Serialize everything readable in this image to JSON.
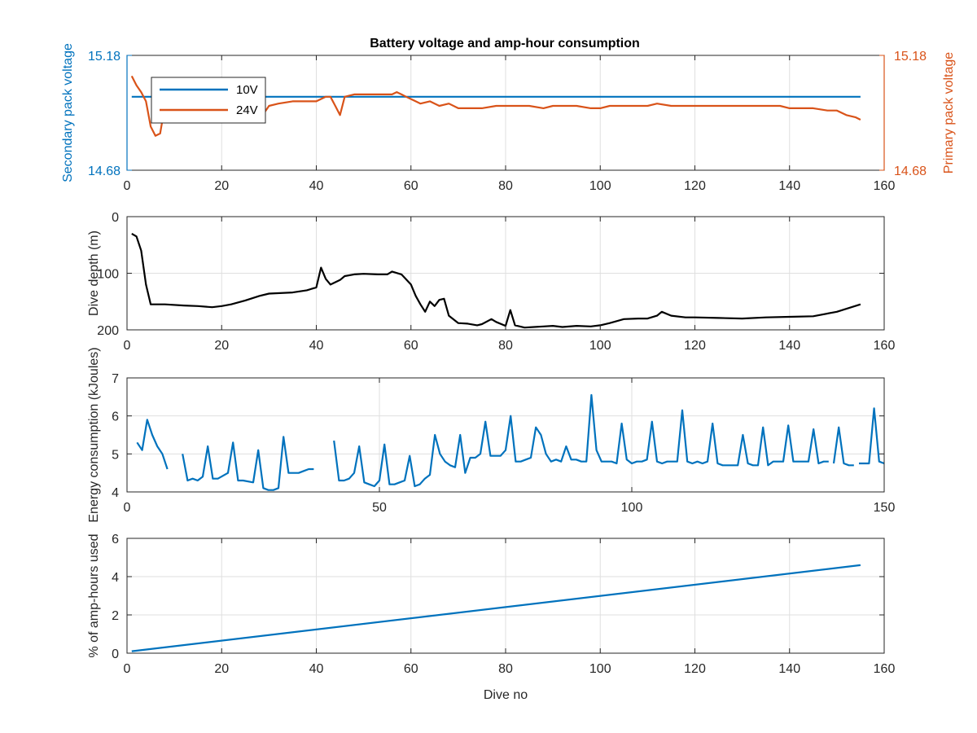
{
  "colors": {
    "blue": "#0072BD",
    "orange": "#D95319",
    "black": "#000000",
    "axis": "#262626",
    "grid": "#DFDFDF"
  },
  "chart_data": [
    {
      "type": "line",
      "title": "Battery voltage and amp-hour consumption",
      "xlabel": "",
      "ylabel_left": "Secondary pack voltage",
      "ylabel_right": "Primary pack voltage",
      "xlim": [
        0,
        160
      ],
      "ylim": [
        14.68,
        15.18
      ],
      "xticks": [
        0,
        20,
        40,
        60,
        80,
        100,
        120,
        140,
        160
      ],
      "yticks_left": [
        "14.68",
        "15.18"
      ],
      "yticks_right": [
        "14.68",
        "15.18"
      ],
      "grid": true,
      "legend": {
        "placement": "top-left",
        "entries": [
          "10V",
          "24V"
        ]
      },
      "series": [
        {
          "name": "10V",
          "axis": "left",
          "x": [
            1,
            155
          ],
          "y": [
            15.0,
            15.0
          ]
        },
        {
          "name": "24V",
          "axis": "right",
          "x": [
            1,
            2,
            3,
            4,
            5,
            6,
            7,
            8,
            10,
            12,
            15,
            18,
            20,
            22,
            25,
            27,
            28,
            29,
            30,
            32,
            35,
            38,
            40,
            42,
            43,
            44,
            45,
            46,
            48,
            50,
            52,
            54,
            56,
            57,
            58,
            59,
            60,
            62,
            64,
            66,
            68,
            70,
            72,
            75,
            78,
            80,
            82,
            85,
            88,
            90,
            92,
            95,
            98,
            100,
            102,
            105,
            108,
            110,
            112,
            115,
            118,
            120,
            122,
            125,
            128,
            130,
            132,
            135,
            138,
            140,
            142,
            145,
            148,
            150,
            152,
            154,
            155
          ],
          "y": [
            15.09,
            15.05,
            15.02,
            14.98,
            14.87,
            14.83,
            14.84,
            14.96,
            14.96,
            14.97,
            14.97,
            14.96,
            14.97,
            14.97,
            14.98,
            14.98,
            14.93,
            14.93,
            14.96,
            14.97,
            14.98,
            14.98,
            14.98,
            15.0,
            15.0,
            14.96,
            14.92,
            15.0,
            15.01,
            15.01,
            15.01,
            15.01,
            15.01,
            15.02,
            15.01,
            15.0,
            14.99,
            14.97,
            14.98,
            14.96,
            14.97,
            14.95,
            14.95,
            14.95,
            14.96,
            14.96,
            14.96,
            14.96,
            14.95,
            14.96,
            14.96,
            14.96,
            14.95,
            14.95,
            14.96,
            14.96,
            14.96,
            14.96,
            14.97,
            14.96,
            14.96,
            14.96,
            14.96,
            14.96,
            14.96,
            14.96,
            14.96,
            14.96,
            14.96,
            14.95,
            14.95,
            14.95,
            14.94,
            14.94,
            14.92,
            14.91,
            14.9
          ]
        }
      ]
    },
    {
      "type": "line",
      "title": "",
      "xlabel": "",
      "ylabel": "Dive depth (m)",
      "xlim": [
        0,
        160
      ],
      "ylim": [
        200,
        0
      ],
      "y_reversed": true,
      "xticks": [
        0,
        20,
        40,
        60,
        80,
        100,
        120,
        140,
        160
      ],
      "yticks": [
        0,
        100,
        200
      ],
      "grid": true,
      "series": [
        {
          "x": [
            1,
            2,
            3,
            4,
            5,
            8,
            12,
            15,
            18,
            20,
            22,
            25,
            28,
            30,
            35,
            38,
            40,
            41,
            42,
            43,
            45,
            46,
            48,
            50,
            53,
            55,
            56,
            58,
            60,
            61,
            62,
            63,
            64,
            65,
            66,
            67,
            68,
            70,
            72,
            74,
            75,
            77,
            78,
            80,
            81,
            82,
            84,
            86,
            88,
            90,
            92,
            95,
            98,
            100,
            102,
            105,
            108,
            110,
            112,
            113,
            115,
            118,
            120,
            125,
            130,
            135,
            140,
            145,
            150,
            155
          ],
          "y": [
            30,
            35,
            60,
            120,
            155,
            155,
            157,
            158,
            160,
            158,
            155,
            148,
            140,
            136,
            134,
            130,
            125,
            90,
            110,
            120,
            112,
            105,
            102,
            101,
            102,
            102,
            97,
            102,
            120,
            140,
            155,
            168,
            150,
            158,
            147,
            145,
            175,
            188,
            189,
            192,
            190,
            181,
            186,
            193,
            165,
            192,
            196,
            195,
            194,
            193,
            195,
            193,
            194,
            192,
            188,
            181,
            180,
            180,
            175,
            168,
            175,
            178,
            178,
            179,
            180,
            178,
            177,
            176,
            168,
            155
          ]
        }
      ]
    },
    {
      "type": "line",
      "title": "",
      "xlabel": "",
      "ylabel": "Energy consumption (kJoules)",
      "xlim": [
        0,
        150
      ],
      "ylim": [
        4,
        7
      ],
      "xticks": [
        0,
        50,
        100,
        150
      ],
      "yticks": [
        4,
        5,
        6,
        7
      ],
      "grid": true,
      "series": [
        {
          "segments": [
            {
              "x": [
                2,
                3,
                4,
                5,
                6,
                7,
                8
              ],
              "y": [
                5.3,
                5.1,
                5.9,
                5.5,
                5.2,
                5.0,
                4.6
              ]
            },
            {
              "x": [
                11,
                12,
                13,
                14,
                15,
                16,
                17,
                18,
                20,
                21,
                22,
                23,
                25,
                26,
                27,
                28,
                29,
                30,
                31,
                32,
                33,
                34,
                35,
                36,
                37
              ],
              "y": [
                5.0,
                4.3,
                4.35,
                4.3,
                4.4,
                5.2,
                4.35,
                4.35,
                4.5,
                5.3,
                4.3,
                4.3,
                4.25,
                5.1,
                4.1,
                4.05,
                4.05,
                4.1,
                5.45,
                4.5,
                4.5,
                4.5,
                4.55,
                4.6,
                4.6
              ]
            },
            {
              "x": [
                41,
                42,
                43,
                44,
                45,
                46,
                47,
                48,
                49,
                50,
                51,
                52,
                53,
                54,
                55,
                56,
                57,
                58,
                59,
                60,
                61,
                62,
                63,
                64,
                65,
                66,
                67,
                68,
                69,
                70,
                71,
                72,
                73,
                74,
                75,
                76,
                77,
                78,
                79,
                80,
                81,
                82,
                83,
                84,
                85,
                86,
                87,
                88,
                89,
                90,
                91,
                92,
                93,
                94,
                95,
                96,
                97,
                98,
                99,
                100,
                101,
                102,
                103,
                104,
                105,
                106,
                107,
                108,
                109,
                110,
                111,
                112,
                113,
                114,
                115,
                116,
                117,
                118,
                119,
                120,
                121,
                122,
                123,
                124,
                125,
                126,
                127,
                128,
                129,
                130,
                131,
                132,
                133,
                134,
                135,
                136,
                137,
                138,
                139
              ],
              "y": [
                5.35,
                4.3,
                4.3,
                4.35,
                4.5,
                5.2,
                4.25,
                4.2,
                4.15,
                4.3,
                5.25,
                4.2,
                4.2,
                4.25,
                4.3,
                4.95,
                4.15,
                4.2,
                4.35,
                4.45,
                5.5,
                5.0,
                4.8,
                4.7,
                4.65,
                5.5,
                4.5,
                4.9,
                4.9,
                5.0,
                5.85,
                4.95,
                4.95,
                4.95,
                5.1,
                6.0,
                4.8,
                4.8,
                4.85,
                4.9,
                5.7,
                5.5,
                5.0,
                4.8,
                4.85,
                4.8,
                5.2,
                4.85,
                4.85,
                4.8,
                4.8,
                6.55,
                5.1,
                4.8,
                4.8,
                4.8,
                4.75,
                5.8,
                4.85,
                4.75,
                4.8,
                4.8,
                4.85,
                5.85,
                4.8,
                4.75,
                4.8,
                4.8,
                4.8,
                6.15,
                4.8,
                4.75,
                4.8,
                4.75,
                4.8,
                5.8,
                4.75,
                4.7,
                4.7,
                4.7,
                4.7,
                5.5,
                4.75,
                4.7,
                4.7,
                5.7,
                4.7,
                4.8,
                4.8,
                4.8,
                5.75,
                4.8,
                4.8,
                4.8,
                4.8,
                5.65,
                4.75,
                4.8,
                4.8
              ]
            },
            {
              "x": [
                140,
                141,
                142,
                143,
                144
              ],
              "y": [
                4.75,
                5.7,
                4.75,
                4.7,
                4.7
              ]
            },
            {
              "x": [
                145,
                146,
                147,
                148,
                149,
                150
              ],
              "y": [
                4.75,
                4.75,
                4.75,
                6.2,
                4.8,
                4.75
              ]
            }
          ]
        }
      ]
    },
    {
      "type": "line",
      "title": "",
      "xlabel": "Dive no",
      "ylabel": "% of amp-hours used",
      "xlim": [
        0,
        160
      ],
      "ylim": [
        0,
        6
      ],
      "xticks": [
        0,
        20,
        40,
        60,
        80,
        100,
        120,
        140,
        160
      ],
      "yticks": [
        0,
        2,
        4,
        6
      ],
      "grid": true,
      "series": [
        {
          "x": [
            1,
            155
          ],
          "y": [
            0.1,
            4.6
          ]
        }
      ]
    }
  ]
}
